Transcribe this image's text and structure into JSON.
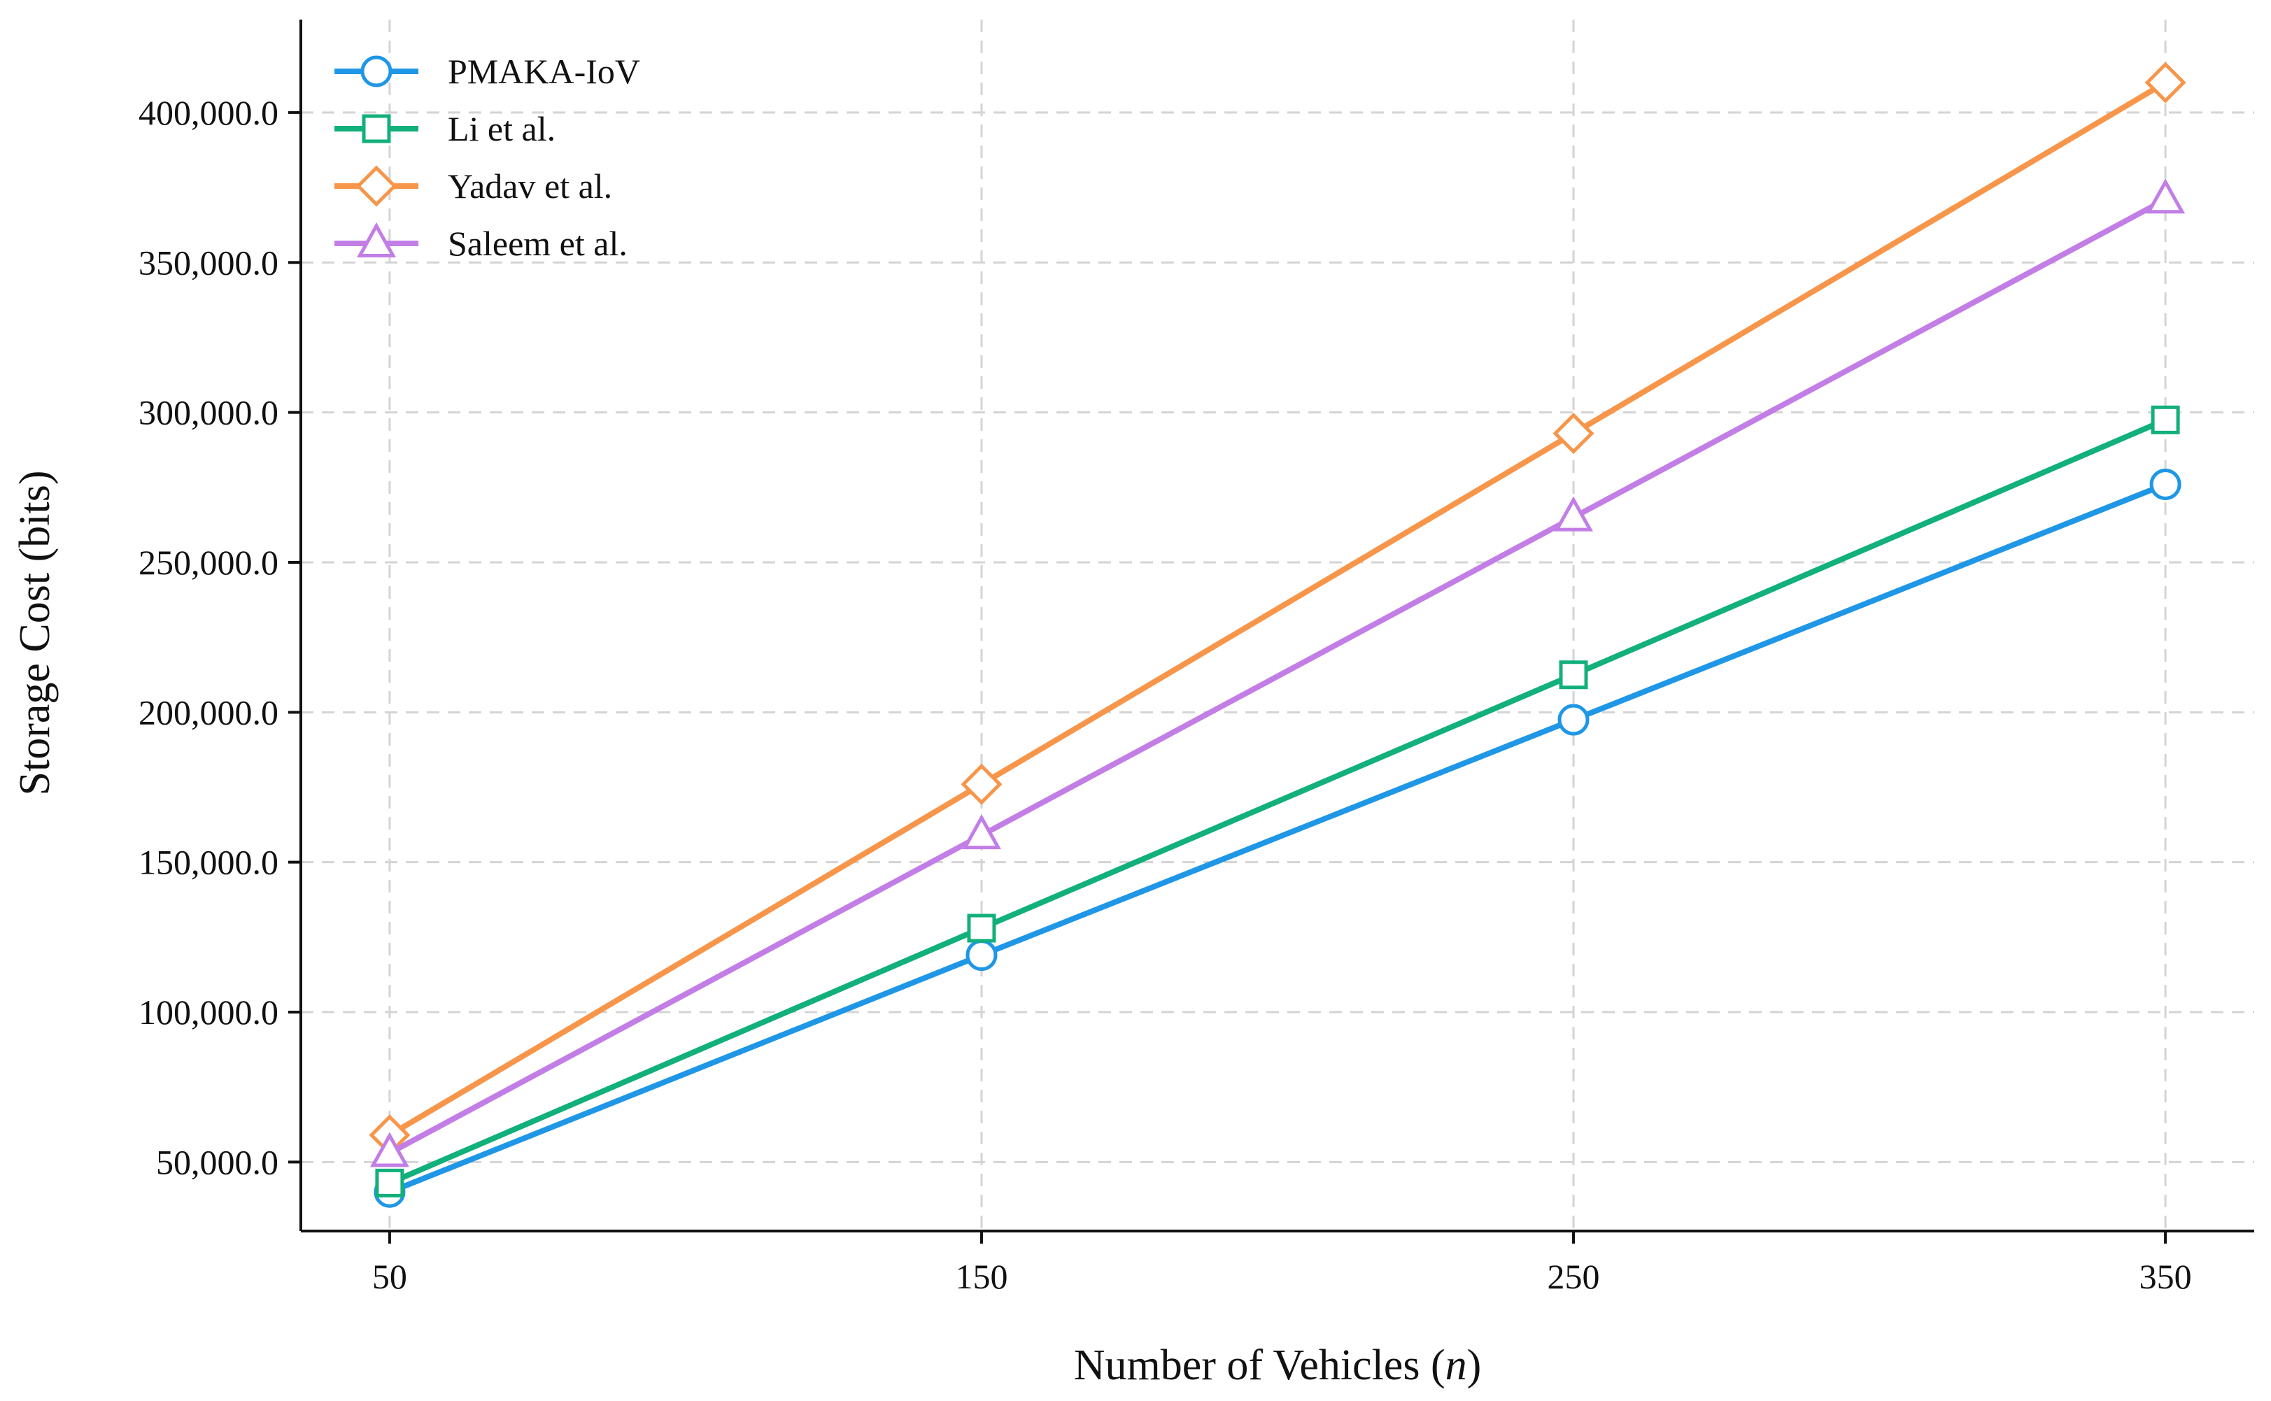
{
  "chart_data": {
    "type": "line",
    "title": "",
    "xlabel": "Number of Vehicles",
    "xlabel_var": "n",
    "ylabel": "Storage Cost (bits)",
    "x": [
      50,
      150,
      250,
      350
    ],
    "xlim": [
      35,
      365
    ],
    "ylim": [
      27000,
      431000
    ],
    "yticks": [
      50000,
      100000,
      150000,
      200000,
      250000,
      300000,
      350000,
      400000
    ],
    "ytick_labels": [
      "50,000.0",
      "100,000.0",
      "150,000.0",
      "200,000.0",
      "250,000.0",
      "300,000.0",
      "350,000.0",
      "400,000.0"
    ],
    "xtick_labels": [
      "50",
      "150",
      "250",
      "350"
    ],
    "grid": true,
    "legend_position": "top-left",
    "series": [
      {
        "name": "PMAKA-IoV",
        "marker": "circle",
        "color": "#1f97e6",
        "values": [
          40000,
          119000,
          197500,
          276000
        ]
      },
      {
        "name": "Li et al.",
        "marker": "square",
        "color": "#12b07a",
        "values": [
          43000,
          128000,
          212500,
          297500
        ]
      },
      {
        "name": "Yadav et al.",
        "marker": "diamond",
        "color": "#f7964a",
        "values": [
          59000,
          176000,
          293000,
          410000
        ]
      },
      {
        "name": "Saleem et al.",
        "marker": "triangle",
        "color": "#c27ee6",
        "values": [
          53000,
          159000,
          265000,
          371000
        ]
      }
    ]
  }
}
